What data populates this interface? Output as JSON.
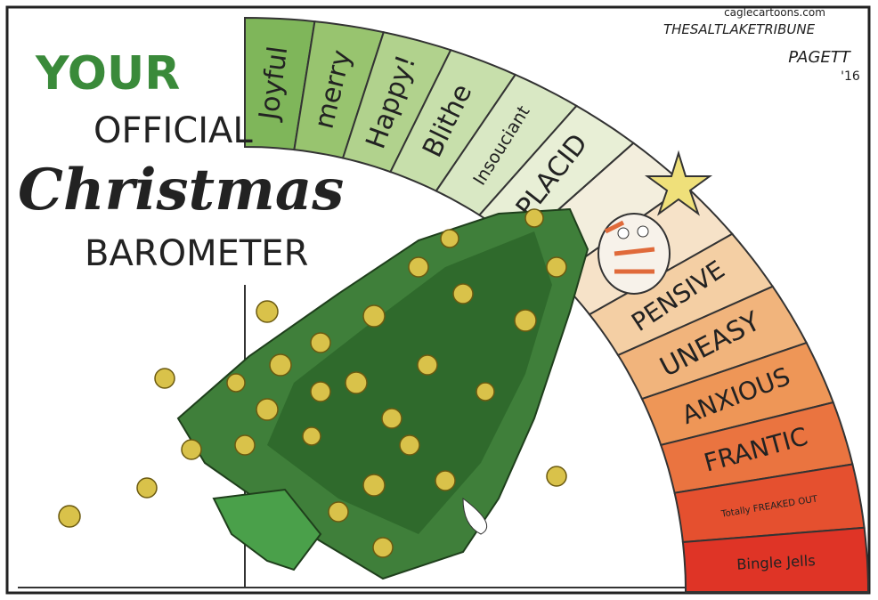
{
  "header": {
    "title_line1": "YOUR",
    "title_line2": "OFFICIAL",
    "title_line3": "Christmas",
    "title_line4": "BAROMETER"
  },
  "credits": {
    "site": "caglecartoons.com",
    "paper": "THESALTLAKETRIBUNE",
    "artist": "PAGETT",
    "year": "'16"
  },
  "barometer": {
    "segments": [
      {
        "label": "Joyful",
        "color": "#7fb65a"
      },
      {
        "label": "merry",
        "color": "#98c46f"
      },
      {
        "label": "Happy!",
        "color": "#b1d28d"
      },
      {
        "label": "Blithe",
        "color": "#c7dfab"
      },
      {
        "label": "Insouciant",
        "color": "#d9e8c4"
      },
      {
        "label": "PLACID",
        "color": "#e8efd6"
      },
      {
        "label": null,
        "color": "#f3eedd"
      },
      {
        "label": null,
        "color": "#f6e2c8"
      },
      {
        "label": "PENSIVE",
        "color": "#f4cfa4"
      },
      {
        "label": "UNEASY",
        "color": "#f1b47c"
      },
      {
        "label": "ANXIOUS",
        "color": "#ee9657"
      },
      {
        "label": "FRANTIC",
        "color": "#ea7440"
      },
      {
        "label": "Totally FREAKED OUT",
        "color": "#e5502f"
      },
      {
        "label": "Bingle Jells",
        "color": "#df3426"
      }
    ]
  }
}
